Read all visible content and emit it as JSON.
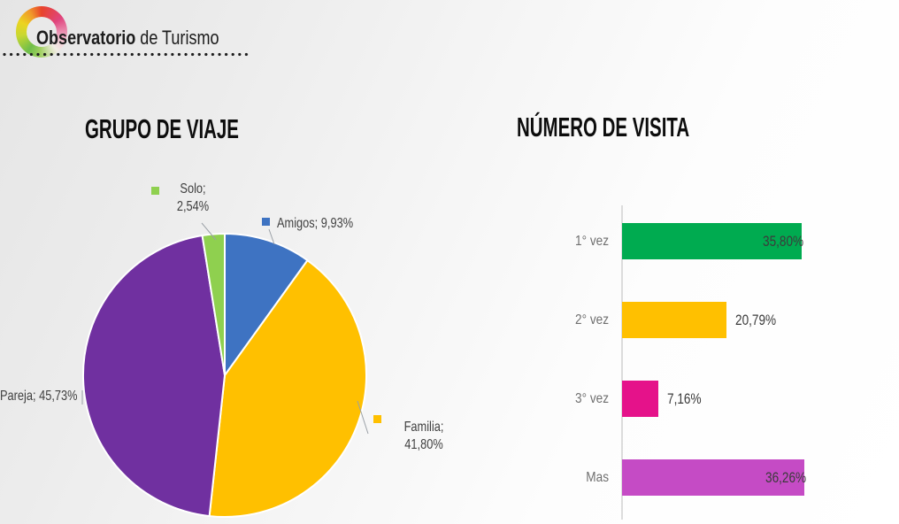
{
  "header": {
    "brand_bold": "Observatorio",
    "brand_light": " de Turismo"
  },
  "chart_data": [
    {
      "type": "pie",
      "title": "GRUPO DE VIAJE",
      "start_angle_deg": 0,
      "direction": "clockwise",
      "legend_position": "callout-labels",
      "slices": [
        {
          "label": "Amigos",
          "value": 9.93,
          "color": "#3E73C2",
          "text_line1": "Amigos; 9,93%"
        },
        {
          "label": "Familia",
          "value": 41.8,
          "color": "#FFC000",
          "text_line1": "Familia;",
          "text_line2": "41,80%"
        },
        {
          "label": "Pareja",
          "value": 45.73,
          "color": "#7030A0",
          "text_line1": "Pareja; 45,73%"
        },
        {
          "label": "Solo",
          "value": 2.54,
          "color": "#8FD04F",
          "text_line1": "Solo;",
          "text_line2": "2,54%"
        }
      ]
    },
    {
      "type": "bar",
      "title": "NÚMERO DE VISITA",
      "orientation": "horizontal",
      "grid": false,
      "xlim": [
        0,
        40
      ],
      "categories": [
        "1° vez",
        "2° vez",
        "3° vez",
        "Mas"
      ],
      "values": [
        35.8,
        20.79,
        7.16,
        36.26
      ],
      "value_labels": [
        "35,80%",
        "20,79%",
        "7,16%",
        "36,26%"
      ],
      "colors": [
        "#00AB50",
        "#FFC000",
        "#E5128A",
        "#C54BC5"
      ]
    }
  ]
}
